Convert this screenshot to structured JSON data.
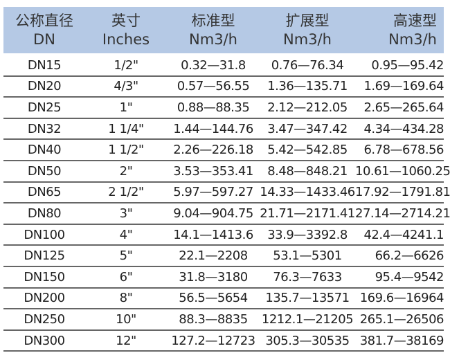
{
  "header": [
    {
      "zh": "公称直径",
      "en": "DN"
    },
    {
      "zh": "英寸",
      "en": "Inches"
    },
    {
      "zh": "标准型",
      "en": "Nm3/h"
    },
    {
      "zh": "扩展型",
      "en": "Nm3/h"
    },
    {
      "zh": "高速型",
      "en": "Nm3/h"
    }
  ],
  "rows": [
    [
      "DN15",
      "1/2\"",
      "0.32—31.8",
      "0.76—76.34",
      "0.95—95.42"
    ],
    [
      "DN20",
      "4/3\"",
      "0.57—56.55",
      "1.36—135.71",
      "1.69—169.64"
    ],
    [
      "DN25",
      "1\"",
      "0.88—88.35",
      "2.12—212.05",
      "2.65—265.64"
    ],
    [
      "DN32",
      "1 1/4\"",
      "1.44—144.76",
      "3.47—347.42",
      "4.34—434.28"
    ],
    [
      "DN40",
      "1 1/2\"",
      "2.26—226.18",
      "5.42—542.85",
      "6.78—678.56"
    ],
    [
      "DN50",
      "2\"",
      "3.53—353.41",
      "8.48—848.21",
      "10.61—1060.25"
    ],
    [
      "DN65",
      "2 1/2\"",
      "5.97—597.27",
      "14.33—1433.46",
      "17.92—1791.81"
    ],
    [
      "DN80",
      "3\"",
      "9.04—904.75",
      "21.71—2171.41",
      "27.14—2714.21"
    ],
    [
      "DN100",
      "4\"",
      "14.1—1413.6",
      "33.9—3392.8",
      "42.4—4241.1"
    ],
    [
      "DN125",
      "5\"",
      "22.1—2208",
      "53.1—5301",
      "66.2—6626"
    ],
    [
      "DN150",
      "6\"",
      "31.8—3180",
      "76.3—7633",
      "95.4—9542"
    ],
    [
      "DN200",
      "8\"",
      "56.5—5654",
      "135.7—13571",
      "169.6—16964"
    ],
    [
      "DN250",
      "10\"",
      "88.3—8835",
      "1212.1—21205",
      "265.1—26506"
    ],
    [
      "DN300",
      "12\"",
      "127.2—12723",
      "305.3—30535",
      "381.7—38169"
    ]
  ],
  "colors": {
    "header_bg": "#b5c9e5",
    "divider": "#666666"
  }
}
